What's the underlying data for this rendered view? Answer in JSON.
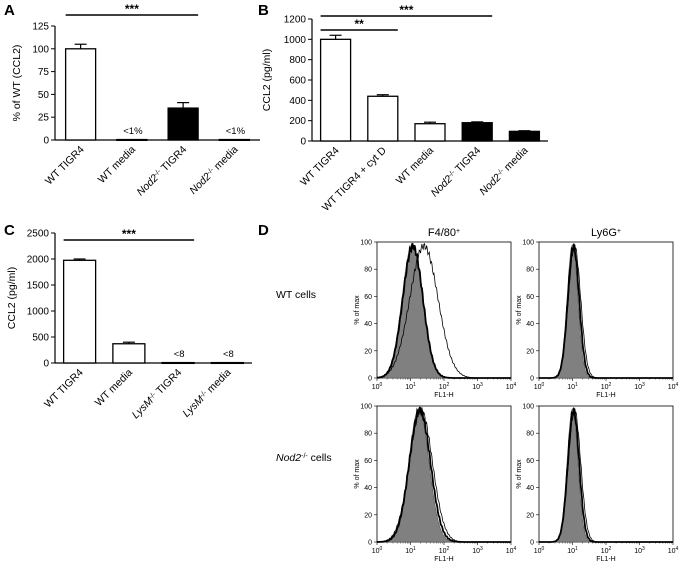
{
  "chart_data": [
    {
      "panel": "A",
      "type": "bar",
      "ylabel": "% of WT (CCL2)",
      "ylim": [
        0,
        125
      ],
      "yticks": [
        "0",
        "25",
        "50",
        "75",
        "100",
        "125"
      ],
      "categories": [
        "WT TIGR4",
        "WT media",
        "Nod2-/- TIGR4",
        "Nod2-/- media"
      ],
      "values": [
        100,
        0.5,
        35,
        0.5
      ],
      "errors": [
        5,
        0,
        6,
        0
      ],
      "fills": [
        "white",
        "white",
        "black",
        "white"
      ],
      "annotations": [
        "",
        "<1%",
        "",
        "<1%"
      ],
      "significance": [
        {
          "from": 0,
          "to": 2,
          "label": "***"
        }
      ]
    },
    {
      "panel": "B",
      "type": "bar",
      "ylabel": "CCL2 (pg/ml)",
      "ylim": [
        0,
        1200
      ],
      "yticks": [
        "0",
        "200",
        "400",
        "600",
        "800",
        "1000",
        "1200"
      ],
      "categories": [
        "WT TIGR4",
        "WT TIGR4 + cyt D",
        "WT media",
        "Nod2-/- TIGR4",
        "Nod2-/- media"
      ],
      "values": [
        1000,
        440,
        170,
        180,
        95
      ],
      "errors": [
        40,
        15,
        15,
        8,
        6
      ],
      "fills": [
        "white",
        "white",
        "white",
        "black",
        "black"
      ],
      "annotations": [
        "",
        "",
        "",
        "",
        ""
      ],
      "significance": [
        {
          "from": 0,
          "to": 1,
          "label": "**"
        },
        {
          "from": 0,
          "to": 3,
          "label": "***"
        }
      ]
    },
    {
      "panel": "C",
      "type": "bar",
      "ylabel": "CCL2 (pg/ml)",
      "ylim": [
        0,
        2500
      ],
      "yticks": [
        "0",
        "500",
        "1000",
        "1500",
        "2000",
        "2500"
      ],
      "categories": [
        "WT TIGR4",
        "WT media",
        "LysM-/- TIGR4",
        "LysM-/- media"
      ],
      "values": [
        1975,
        370,
        8,
        8
      ],
      "errors": [
        25,
        30,
        0,
        0
      ],
      "fills": [
        "white",
        "white",
        "white",
        "white"
      ],
      "annotations": [
        "",
        "",
        "<8",
        "<8"
      ],
      "significance": [
        {
          "from": 0,
          "to": 2,
          "label": "***"
        }
      ]
    },
    {
      "panel": "D",
      "type": "histogram",
      "columns": [
        "F4/80+",
        "Ly6G+"
      ],
      "rows": [
        "WT cells",
        "Nod2-/- cells"
      ],
      "xlabel": "FL1-H",
      "ylabel": "% of max",
      "yticks": [
        "0",
        "20",
        "40",
        "60",
        "80",
        "100"
      ],
      "xticks": [
        "10",
        "10",
        "10",
        "10",
        "10"
      ],
      "xtick_exponents": [
        "0",
        "1",
        "2",
        "3",
        "4"
      ],
      "xscale": "log",
      "xlim": [
        1,
        10000
      ],
      "ylim": [
        0,
        100
      ]
    }
  ]
}
